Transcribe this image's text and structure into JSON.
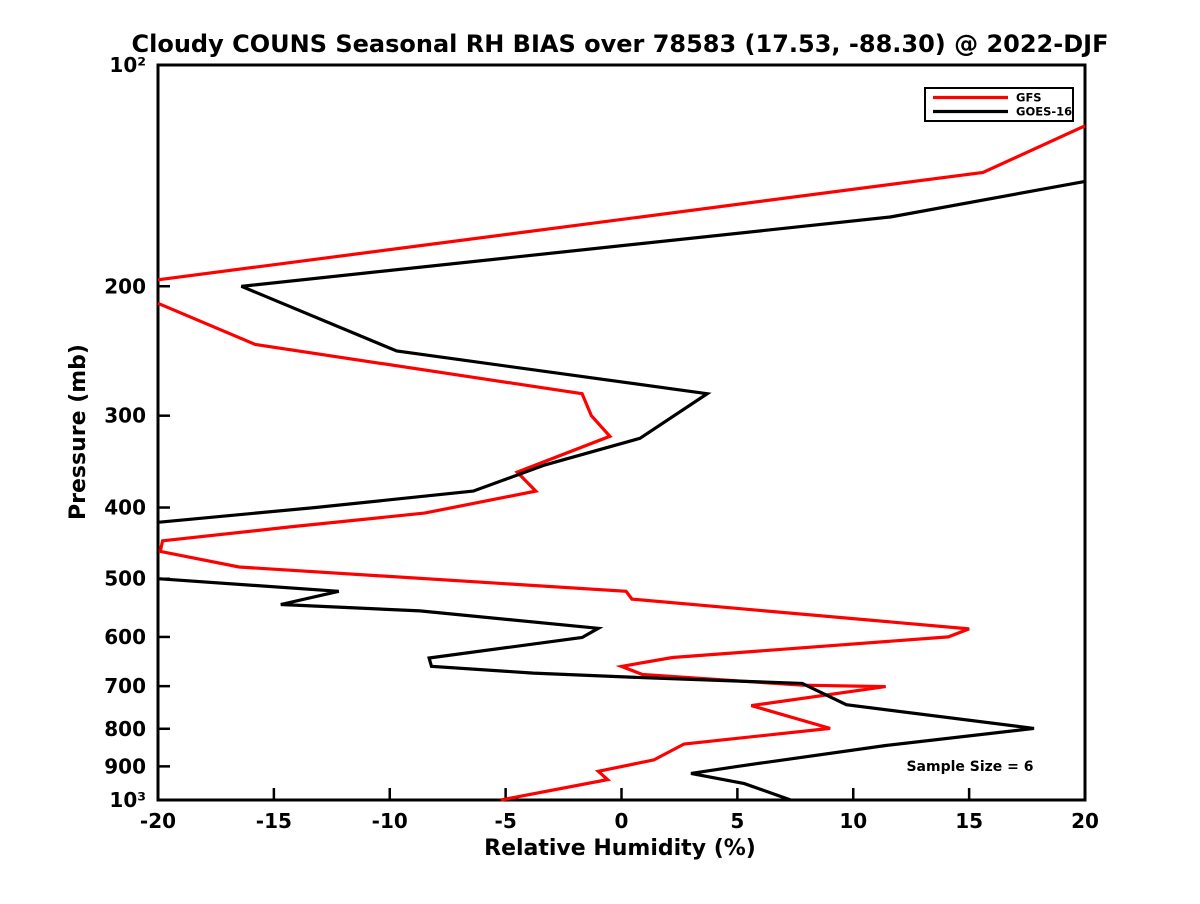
{
  "chart_data": {
    "type": "line",
    "title": "Cloudy COUNS Seasonal RH BIAS over 78583 (17.53, -88.30) @ 2022-DJF",
    "xlabel": "Relative Humidity (%)",
    "ylabel": "Pressure (mb)",
    "xlim": [
      -20,
      20
    ],
    "ylim": [
      100,
      1000
    ],
    "y_scale": "log",
    "y_inverted": true,
    "grid": false,
    "x_ticks": [
      -20,
      -15,
      -10,
      -5,
      0,
      5,
      10,
      15,
      20
    ],
    "x_tick_labels": [
      "-20",
      "-15",
      "-10",
      "-5",
      "0",
      "5",
      "10",
      "15",
      "20"
    ],
    "y_ticks": [
      100,
      200,
      300,
      400,
      500,
      600,
      700,
      800,
      900,
      1000
    ],
    "y_tick_labels": [
      "10²",
      "200",
      "300",
      "400",
      "500",
      "600",
      "700",
      "800",
      "900",
      "10³"
    ],
    "annotation": "Sample Size = 6",
    "legend": {
      "position": "upper right",
      "entries": [
        {
          "label": "GFS",
          "color": "#ff0000"
        },
        {
          "label": "GOES-16",
          "color": "#000000"
        }
      ]
    },
    "series": [
      {
        "name": "GFS",
        "color": "#ff0000",
        "points_format": "[relative_humidity_pct, pressure_mb]; segments split where line exits axis limits",
        "segments": [
          [
            [
              20,
              121
            ],
            [
              15.6,
              140
            ],
            [
              -20,
              196
            ]
          ],
          [
            [
              -20,
              211
            ],
            [
              -15.8,
              240
            ],
            [
              -1.7,
              280
            ],
            [
              -1.3,
              300
            ],
            [
              -0.5,
              320
            ],
            [
              -4.5,
              358
            ],
            [
              -3.7,
              380
            ],
            [
              -8.5,
              407
            ],
            [
              -14.3,
              425
            ],
            [
              -19.8,
              444
            ],
            [
              -19.9,
              459
            ],
            [
              -16.5,
              482
            ],
            [
              0.2,
              520
            ],
            [
              0.45,
              533
            ],
            [
              15.0,
              585
            ],
            [
              14.1,
              600
            ],
            [
              2.2,
              640
            ],
            [
              0.0,
              658
            ],
            [
              0.9,
              675
            ],
            [
              7.8,
              698
            ],
            [
              11.4,
              701
            ],
            [
              5.6,
              744
            ],
            [
              9.0,
              799
            ],
            [
              2.7,
              839
            ],
            [
              1.4,
              882
            ],
            [
              -1.0,
              914
            ],
            [
              -0.6,
              938
            ],
            [
              -5.2,
              1000
            ]
          ]
        ]
      },
      {
        "name": "GOES-16",
        "color": "#000000",
        "points_format": "[relative_humidity_pct, pressure_mb]; segments split where line exits axis limits",
        "segments": [
          [
            [
              20,
              144
            ],
            [
              11.6,
              161
            ],
            [
              -16.4,
              200
            ],
            [
              -9.7,
              245
            ],
            [
              3.7,
              280
            ],
            [
              0.8,
              322
            ],
            [
              -3.3,
              350
            ],
            [
              -6.4,
              380
            ],
            [
              -13.2,
              400
            ],
            [
              -20,
              419
            ]
          ],
          [
            [
              -20,
              500
            ],
            [
              -12.2,
              520
            ],
            [
              -14.7,
              542
            ],
            [
              -8.7,
              553
            ],
            [
              -1.0,
              584
            ],
            [
              -1.7,
              601
            ],
            [
              -8.3,
              641
            ],
            [
              -8.2,
              658
            ],
            [
              -3.8,
              672
            ],
            [
              1.1,
              682
            ],
            [
              7.8,
              694
            ],
            [
              9.7,
              742
            ],
            [
              17.8,
              799
            ],
            [
              11.4,
              843
            ],
            [
              5.0,
              900
            ],
            [
              3.0,
              920
            ],
            [
              5.3,
              950
            ],
            [
              7.3,
              1000
            ]
          ]
        ]
      }
    ]
  }
}
